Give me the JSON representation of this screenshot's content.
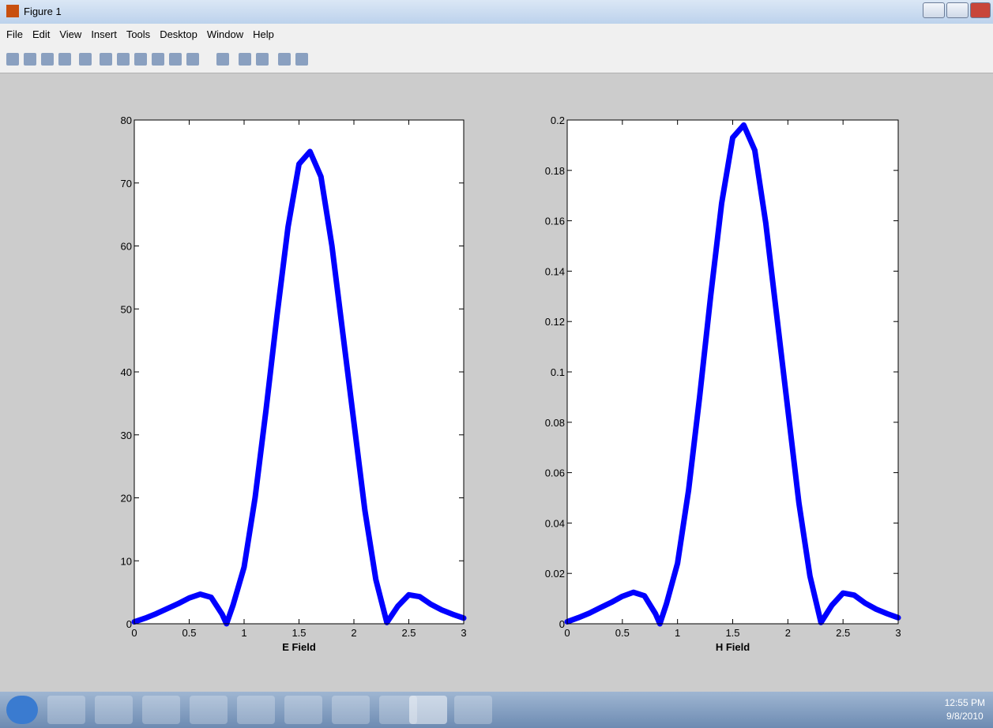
{
  "window": {
    "title": "Figure 1",
    "menu": [
      "File",
      "Edit",
      "View",
      "Insert",
      "Tools",
      "Desktop",
      "Window",
      "Help"
    ]
  },
  "chart_data": [
    {
      "type": "line",
      "xlabel": "E Field",
      "color": "#0000ff",
      "x": [
        0,
        0.1,
        0.2,
        0.3,
        0.4,
        0.5,
        0.6,
        0.7,
        0.8,
        0.84,
        0.9,
        1.0,
        1.1,
        1.2,
        1.3,
        1.4,
        1.5,
        1.6,
        1.7,
        1.8,
        1.9,
        2.0,
        2.1,
        2.2,
        2.3,
        2.4,
        2.5,
        2.6,
        2.7,
        2.8,
        2.9,
        3.0
      ],
      "values": [
        0.3,
        0.9,
        1.6,
        2.4,
        3.2,
        4.1,
        4.7,
        4.2,
        1.5,
        0,
        3,
        9,
        20,
        34,
        49,
        63,
        73,
        75,
        71,
        60,
        46,
        32,
        18,
        7,
        0.2,
        2.8,
        4.6,
        4.3,
        3.1,
        2.2,
        1.5,
        0.9
      ],
      "xlim": [
        0,
        3
      ],
      "xticks": [
        0,
        0.5,
        1,
        1.5,
        2,
        2.5,
        3
      ],
      "ylim": [
        0,
        80
      ],
      "yticks": [
        0,
        10,
        20,
        30,
        40,
        50,
        60,
        70,
        80
      ]
    },
    {
      "type": "line",
      "xlabel": "H Field",
      "color": "#0000ff",
      "x": [
        0,
        0.1,
        0.2,
        0.3,
        0.4,
        0.5,
        0.6,
        0.7,
        0.8,
        0.84,
        0.9,
        1.0,
        1.1,
        1.2,
        1.3,
        1.4,
        1.5,
        1.6,
        1.7,
        1.8,
        1.9,
        2.0,
        2.1,
        2.2,
        2.3,
        2.4,
        2.5,
        2.6,
        2.7,
        2.8,
        2.9,
        3.0
      ],
      "values": [
        0.0008,
        0.0024,
        0.0042,
        0.0064,
        0.0085,
        0.0109,
        0.0125,
        0.0111,
        0.004,
        0,
        0.008,
        0.024,
        0.053,
        0.09,
        0.13,
        0.167,
        0.193,
        0.198,
        0.188,
        0.159,
        0.122,
        0.085,
        0.048,
        0.019,
        0.0005,
        0.0074,
        0.0122,
        0.0114,
        0.0082,
        0.0058,
        0.004,
        0.0024
      ],
      "xlim": [
        0,
        3
      ],
      "xticks": [
        0,
        0.5,
        1,
        1.5,
        2,
        2.5,
        3
      ],
      "ylim": [
        0,
        0.2
      ],
      "yticks": [
        0,
        0.02,
        0.04,
        0.06,
        0.08,
        0.1,
        0.12,
        0.14,
        0.16,
        0.18,
        0.2
      ]
    }
  ],
  "taskbar": {
    "time": "12:55 PM",
    "date": "9/8/2010"
  }
}
